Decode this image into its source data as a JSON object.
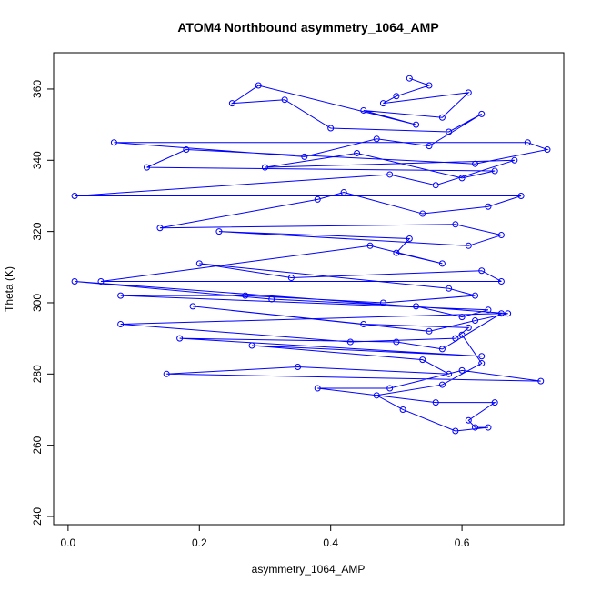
{
  "chart_data": {
    "type": "line",
    "title": "ATOM4 Northbound asymmetry_1064_AMP",
    "x_label": "asymmetry_1064_AMP",
    "y_label": "Theta (K)",
    "xlim": [
      -0.022,
      0.755
    ],
    "ylim": [
      237.7,
      370.2
    ],
    "xticks": [
      {
        "value": 0,
        "label": "0.0"
      },
      0.2,
      0.4,
      0.6
    ],
    "yticks": [
      240,
      260,
      280,
      300,
      320,
      340,
      360
    ],
    "markers": true,
    "x": [
      0.52,
      0.55,
      0.5,
      0.48,
      0.61,
      0.57,
      0.45,
      0.53,
      0.29,
      0.25,
      0.33,
      0.4,
      0.58,
      0.63,
      0.55,
      0.47,
      0.36,
      0.07,
      0.7,
      0.73,
      0.62,
      0.18,
      0.12,
      0.65,
      0.6,
      0.44,
      0.3,
      0.68,
      0.56,
      0.49,
      0.01,
      0.69,
      0.64,
      0.54,
      0.42,
      0.38,
      0.14,
      0.59,
      0.66,
      0.61,
      0.23,
      0.52,
      0.5,
      0.57,
      0.46,
      0.05,
      0.66,
      0.63,
      0.34,
      0.2,
      0.58,
      0.62,
      0.48,
      0.27,
      0.08,
      0.64,
      0.6,
      0.53,
      0.31,
      0.01,
      0.67,
      0.62,
      0.55,
      0.19,
      0.45,
      0.61,
      0.59,
      0.43,
      0.08,
      0.66,
      0.57,
      0.5,
      0.17,
      0.63,
      0.28,
      0.54,
      0.58,
      0.35,
      0.15,
      0.72,
      0.6,
      0.49,
      0.38,
      0.56,
      0.65,
      0.61,
      0.62,
      0.64,
      0.59,
      0.51,
      0.47,
      0.57,
      0.63,
      0.6
    ],
    "series": [
      {
        "color": "#0000ff",
        "values": [
          363,
          361,
          358,
          356,
          359,
          352,
          354,
          350,
          361,
          356,
          357,
          349,
          348,
          353,
          344,
          346,
          341,
          345,
          345,
          343,
          339,
          343,
          338,
          337,
          335,
          342,
          338,
          340,
          333,
          336,
          330,
          330,
          327,
          325,
          331,
          329,
          321,
          322,
          319,
          316,
          320,
          318,
          314,
          311,
          316,
          306,
          306,
          309,
          307,
          311,
          304,
          302,
          300,
          302,
          302,
          298,
          296,
          299,
          301,
          306,
          297,
          295,
          292,
          299,
          294,
          293,
          290,
          289,
          294,
          297,
          287,
          289,
          290,
          285,
          288,
          284,
          280,
          282,
          280,
          278,
          281,
          276,
          276,
          272,
          272,
          267,
          265,
          265,
          264,
          270,
          274,
          277,
          283,
          291
        ]
      }
    ]
  }
}
